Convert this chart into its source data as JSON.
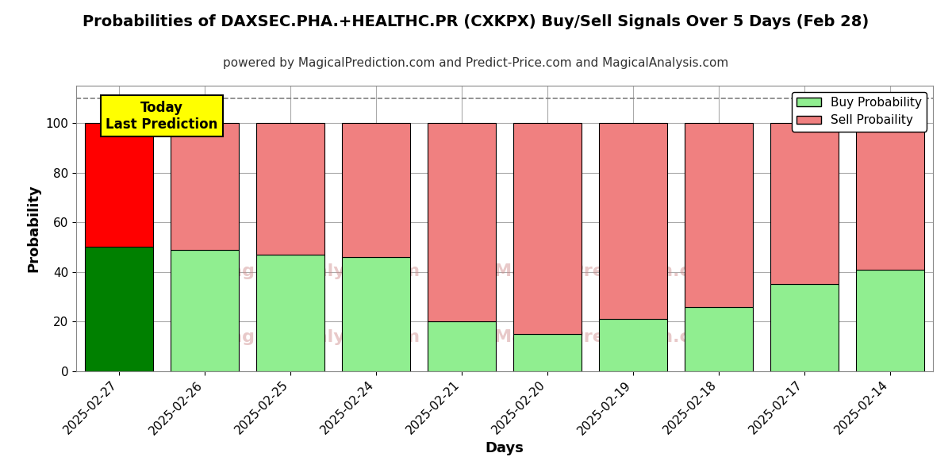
{
  "title": "Probabilities of DAXSEC.PHA.+HEALTHC.PR (CXKPX) Buy/Sell Signals Over 5 Days (Feb 28)",
  "subtitle": "powered by MagicalPrediction.com and Predict-Price.com and MagicalAnalysis.com",
  "xlabel": "Days",
  "ylabel": "Probability",
  "categories": [
    "2025-02-27",
    "2025-02-26",
    "2025-02-25",
    "2025-02-24",
    "2025-02-21",
    "2025-02-20",
    "2025-02-19",
    "2025-02-18",
    "2025-02-17",
    "2025-02-14"
  ],
  "buy_values": [
    50,
    49,
    47,
    46,
    20,
    15,
    21,
    26,
    35,
    41
  ],
  "sell_values": [
    50,
    51,
    53,
    54,
    80,
    85,
    79,
    74,
    65,
    59
  ],
  "today_buy_color": "#008000",
  "today_sell_color": "#ff0000",
  "other_buy_color": "#90EE90",
  "other_sell_color": "#F08080",
  "today_label_text": "Today\nLast Prediction",
  "today_label_bg": "#ffff00",
  "legend_buy_label": "Buy Probability",
  "legend_sell_label": "Sell Probaility",
  "ylim": [
    0,
    115
  ],
  "dashed_line_y": 110,
  "bar_edge_color": "#000000",
  "bar_linewidth": 0.8,
  "grid_color": "#aaaaaa",
  "figsize": [
    12,
    6
  ],
  "dpi": 100
}
